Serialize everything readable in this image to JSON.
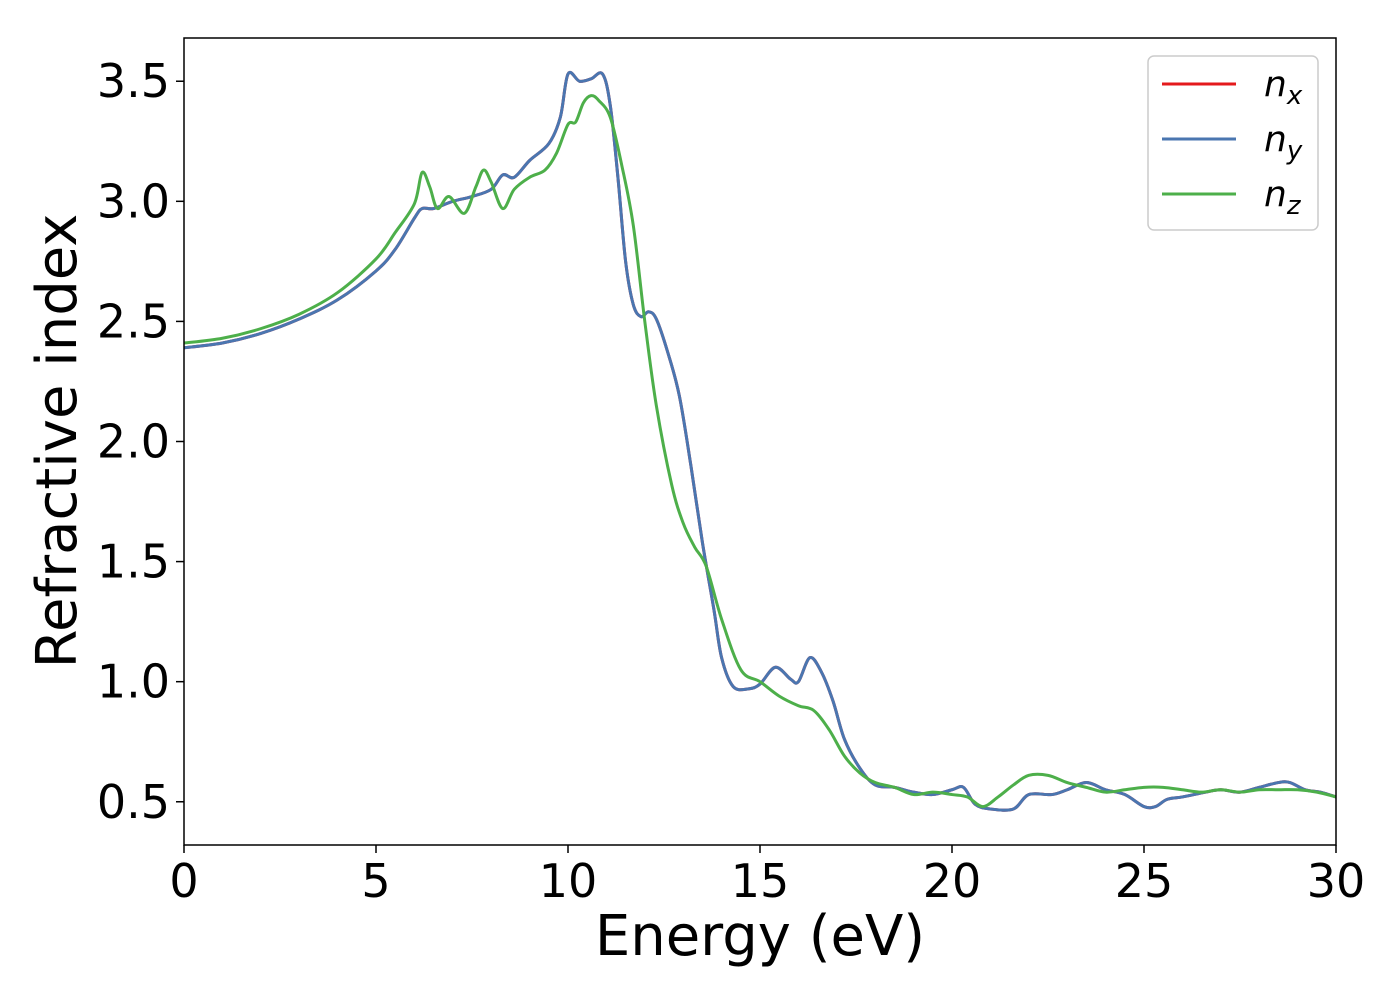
{
  "chart_data": {
    "type": "line",
    "title": "",
    "xlabel": "Energy (eV)",
    "ylabel": "Refractive index",
    "xlim": [
      0,
      30
    ],
    "ylim": [
      0.32,
      3.68
    ],
    "xticks": [
      0,
      5,
      10,
      15,
      20,
      25,
      30
    ],
    "yticks": [
      0.5,
      1.0,
      1.5,
      2.0,
      2.5,
      3.0,
      3.5
    ],
    "xtick_labels": [
      "0",
      "5",
      "10",
      "15",
      "20",
      "25",
      "30"
    ],
    "ytick_labels": [
      "0.5",
      "1.0",
      "1.5",
      "2.0",
      "2.5",
      "3.0",
      "3.5"
    ],
    "grid": false,
    "legend_position": "top-right",
    "series": [
      {
        "name": "n_x",
        "label_main": "n",
        "label_sub": "x",
        "color": "#e41a1c",
        "x": [
          0,
          1,
          2,
          3,
          4,
          5,
          5.5,
          6,
          6.2,
          6.5,
          7,
          7.5,
          8,
          8.3,
          8.6,
          9,
          9.5,
          9.8,
          10,
          10.3,
          10.6,
          10.9,
          11.1,
          11.3,
          11.5,
          11.7,
          11.9,
          12.1,
          12.3,
          12.6,
          12.9,
          13.2,
          13.5,
          13.8,
          14.0,
          14.3,
          14.7,
          15.0,
          15.4,
          15.8,
          16.0,
          16.3,
          16.6,
          16.9,
          17.2,
          17.6,
          18.0,
          18.5,
          19.0,
          19.5,
          20.0,
          20.3,
          20.6,
          21.0,
          21.6,
          22.0,
          22.6,
          23.0,
          23.5,
          24.0,
          24.5,
          25.0,
          25.3,
          25.6,
          26.0,
          26.6,
          27.0,
          27.5,
          28.0,
          28.5,
          28.8,
          29.2,
          29.6,
          30.0
        ],
        "y": [
          2.39,
          2.41,
          2.45,
          2.51,
          2.59,
          2.71,
          2.8,
          2.93,
          2.97,
          2.97,
          3.0,
          3.02,
          3.05,
          3.11,
          3.1,
          3.17,
          3.24,
          3.35,
          3.53,
          3.5,
          3.51,
          3.53,
          3.4,
          3.1,
          2.75,
          2.57,
          2.52,
          2.54,
          2.51,
          2.37,
          2.19,
          1.9,
          1.58,
          1.3,
          1.1,
          0.98,
          0.97,
          0.99,
          1.06,
          1.01,
          1.0,
          1.1,
          1.04,
          0.92,
          0.76,
          0.64,
          0.57,
          0.56,
          0.54,
          0.53,
          0.55,
          0.56,
          0.49,
          0.47,
          0.47,
          0.53,
          0.53,
          0.55,
          0.58,
          0.55,
          0.53,
          0.48,
          0.48,
          0.51,
          0.52,
          0.54,
          0.55,
          0.54,
          0.56,
          0.58,
          0.58,
          0.55,
          0.54,
          0.52
        ]
      },
      {
        "name": "n_y",
        "label_main": "n",
        "label_sub": "y",
        "color": "#4a76b0",
        "x": [
          0,
          1,
          2,
          3,
          4,
          5,
          5.5,
          6,
          6.2,
          6.5,
          7,
          7.5,
          8,
          8.3,
          8.6,
          9,
          9.5,
          9.8,
          10,
          10.3,
          10.6,
          10.9,
          11.1,
          11.3,
          11.5,
          11.7,
          11.9,
          12.1,
          12.3,
          12.6,
          12.9,
          13.2,
          13.5,
          13.8,
          14.0,
          14.3,
          14.7,
          15.0,
          15.4,
          15.8,
          16.0,
          16.3,
          16.6,
          16.9,
          17.2,
          17.6,
          18.0,
          18.5,
          19.0,
          19.5,
          20.0,
          20.3,
          20.6,
          21.0,
          21.6,
          22.0,
          22.6,
          23.0,
          23.5,
          24.0,
          24.5,
          25.0,
          25.3,
          25.6,
          26.0,
          26.6,
          27.0,
          27.5,
          28.0,
          28.5,
          28.8,
          29.2,
          29.6,
          30.0
        ],
        "y": [
          2.39,
          2.41,
          2.45,
          2.51,
          2.59,
          2.71,
          2.8,
          2.93,
          2.97,
          2.97,
          3.0,
          3.02,
          3.05,
          3.11,
          3.1,
          3.17,
          3.24,
          3.35,
          3.53,
          3.5,
          3.51,
          3.53,
          3.4,
          3.1,
          2.75,
          2.57,
          2.52,
          2.54,
          2.51,
          2.37,
          2.19,
          1.9,
          1.58,
          1.3,
          1.1,
          0.98,
          0.97,
          0.99,
          1.06,
          1.01,
          1.0,
          1.1,
          1.04,
          0.92,
          0.76,
          0.64,
          0.57,
          0.56,
          0.54,
          0.53,
          0.55,
          0.56,
          0.49,
          0.47,
          0.47,
          0.53,
          0.53,
          0.55,
          0.58,
          0.55,
          0.53,
          0.48,
          0.48,
          0.51,
          0.52,
          0.54,
          0.55,
          0.54,
          0.56,
          0.58,
          0.58,
          0.55,
          0.54,
          0.52
        ]
      },
      {
        "name": "n_z",
        "label_main": "n",
        "label_sub": "z",
        "color": "#4daf4a",
        "x": [
          0,
          1,
          2,
          3,
          4,
          5,
          5.5,
          6,
          6.2,
          6.4,
          6.6,
          6.9,
          7.3,
          7.6,
          7.8,
          8.0,
          8.3,
          8.6,
          9.0,
          9.4,
          9.7,
          10.0,
          10.2,
          10.4,
          10.6,
          10.8,
          11.1,
          11.4,
          11.7,
          12.0,
          12.3,
          12.7,
          13.0,
          13.3,
          13.6,
          14.0,
          14.5,
          15.0,
          15.5,
          16.0,
          16.4,
          16.8,
          17.2,
          17.6,
          18.0,
          18.5,
          19.0,
          19.5,
          20.0,
          20.4,
          20.8,
          21.2,
          21.6,
          22.0,
          22.5,
          23.0,
          23.5,
          24.0,
          24.5,
          25.0,
          25.5,
          26.0,
          26.5,
          27.0,
          27.5,
          28.0,
          28.5,
          29.0,
          29.5,
          30.0
        ],
        "y": [
          2.41,
          2.43,
          2.47,
          2.53,
          2.62,
          2.76,
          2.87,
          2.99,
          3.12,
          3.06,
          2.97,
          3.02,
          2.95,
          3.06,
          3.13,
          3.08,
          2.97,
          3.05,
          3.1,
          3.13,
          3.2,
          3.32,
          3.33,
          3.41,
          3.44,
          3.42,
          3.35,
          3.15,
          2.9,
          2.5,
          2.15,
          1.82,
          1.66,
          1.56,
          1.48,
          1.26,
          1.05,
          1.0,
          0.94,
          0.9,
          0.88,
          0.8,
          0.69,
          0.62,
          0.58,
          0.56,
          0.53,
          0.54,
          0.53,
          0.52,
          0.48,
          0.52,
          0.57,
          0.61,
          0.61,
          0.58,
          0.56,
          0.54,
          0.55,
          0.56,
          0.56,
          0.55,
          0.54,
          0.55,
          0.54,
          0.55,
          0.55,
          0.55,
          0.54,
          0.52
        ]
      }
    ]
  }
}
